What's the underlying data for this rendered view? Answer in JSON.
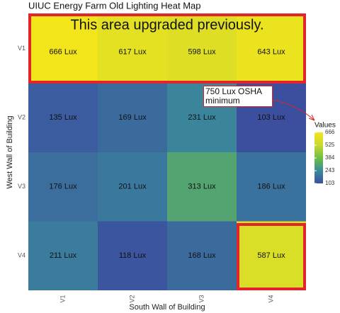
{
  "chart_data": {
    "type": "heatmap",
    "title": "UIUC Energy Farm Old Lighting Heat Map",
    "x_label": "South Wall of Building",
    "y_label": "West Wall of Building",
    "x_categories": [
      "V1",
      "V2",
      "V3",
      "V4"
    ],
    "y_categories": [
      "V1",
      "V2",
      "V3",
      "V4"
    ],
    "values": [
      [
        666,
        617,
        598,
        643
      ],
      [
        135,
        169,
        231,
        103
      ],
      [
        176,
        201,
        313,
        186
      ],
      [
        211,
        118,
        168,
        587
      ]
    ],
    "value_labels": [
      [
        "666 Lux",
        "617 Lux",
        "598  Lux",
        "643 Lux"
      ],
      [
        "135 Lux",
        "169 Lux",
        "231 Lux",
        "103 Lux"
      ],
      [
        "176 Lux",
        "201 Lux",
        "313 Lux",
        "186 Lux"
      ],
      [
        "211 Lux",
        "118 Lux",
        "168 Lux",
        "587 Lux"
      ]
    ],
    "colorscale": [
      "#3b4f9e",
      "#3b8a9c",
      "#6cbf45",
      "#c8d932",
      "#f2e519"
    ],
    "colorbar": {
      "title": "Values",
      "lim": [
        103,
        666
      ],
      "ticks": [
        666,
        525,
        384,
        243,
        103
      ]
    },
    "annotations": [
      "This area upgraded previously.",
      "750 Lux OSHA minimum"
    ]
  }
}
